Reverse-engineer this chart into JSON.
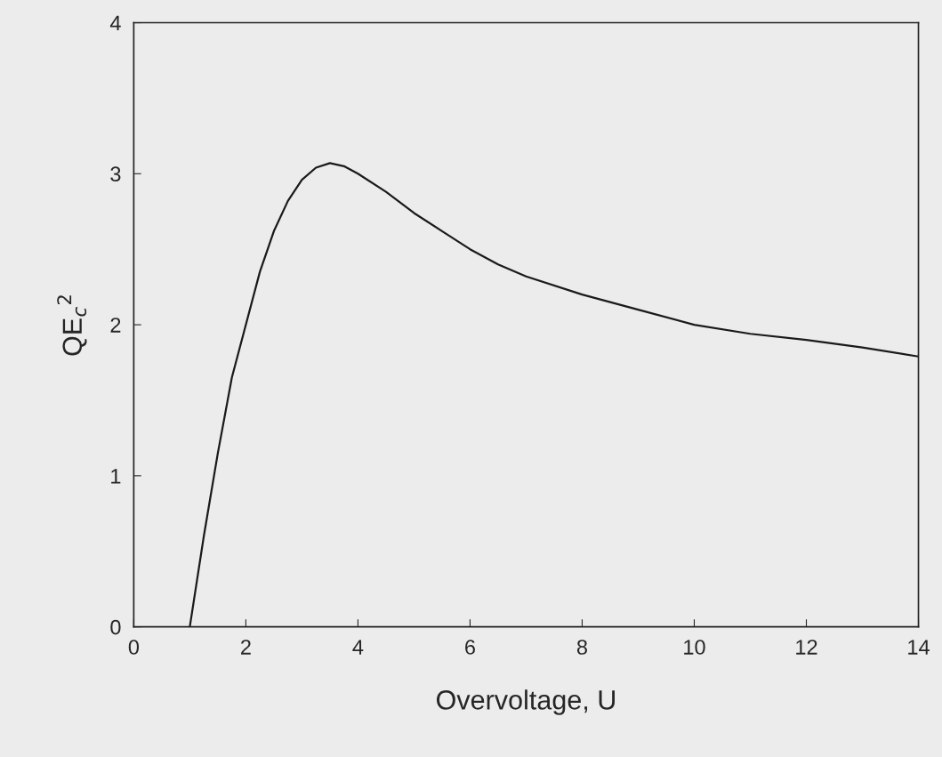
{
  "chart_data": {
    "type": "line",
    "xlabel": "Overvoltage, U",
    "ylabel": "QE$_{c}$$^{2}$",
    "series": [
      {
        "color": "#1a1a1a",
        "x": [
          1,
          1.25,
          1.5,
          1.75,
          2,
          2.25,
          2.5,
          2.75,
          3,
          3.25,
          3.5,
          3.75,
          4,
          4.5,
          5,
          5.5,
          6,
          6.5,
          7,
          8,
          9,
          10,
          11,
          12,
          13,
          14
        ],
        "values": [
          0,
          0.6,
          1.15,
          1.65,
          2.0,
          2.35,
          2.62,
          2.82,
          2.96,
          3.04,
          3.07,
          3.05,
          3.0,
          2.88,
          2.74,
          2.62,
          2.5,
          2.4,
          2.32,
          2.2,
          2.1,
          2.0,
          1.94,
          1.9,
          1.85,
          1.79
        ]
      }
    ],
    "xlim": [
      0,
      14
    ],
    "ylim": [
      0,
      4
    ],
    "xticks": [
      0,
      2,
      4,
      6,
      8,
      10,
      12,
      14
    ],
    "yticks": [
      0,
      1,
      2,
      3,
      4
    ],
    "grid": false,
    "marker": "none",
    "line_style": "solid"
  }
}
